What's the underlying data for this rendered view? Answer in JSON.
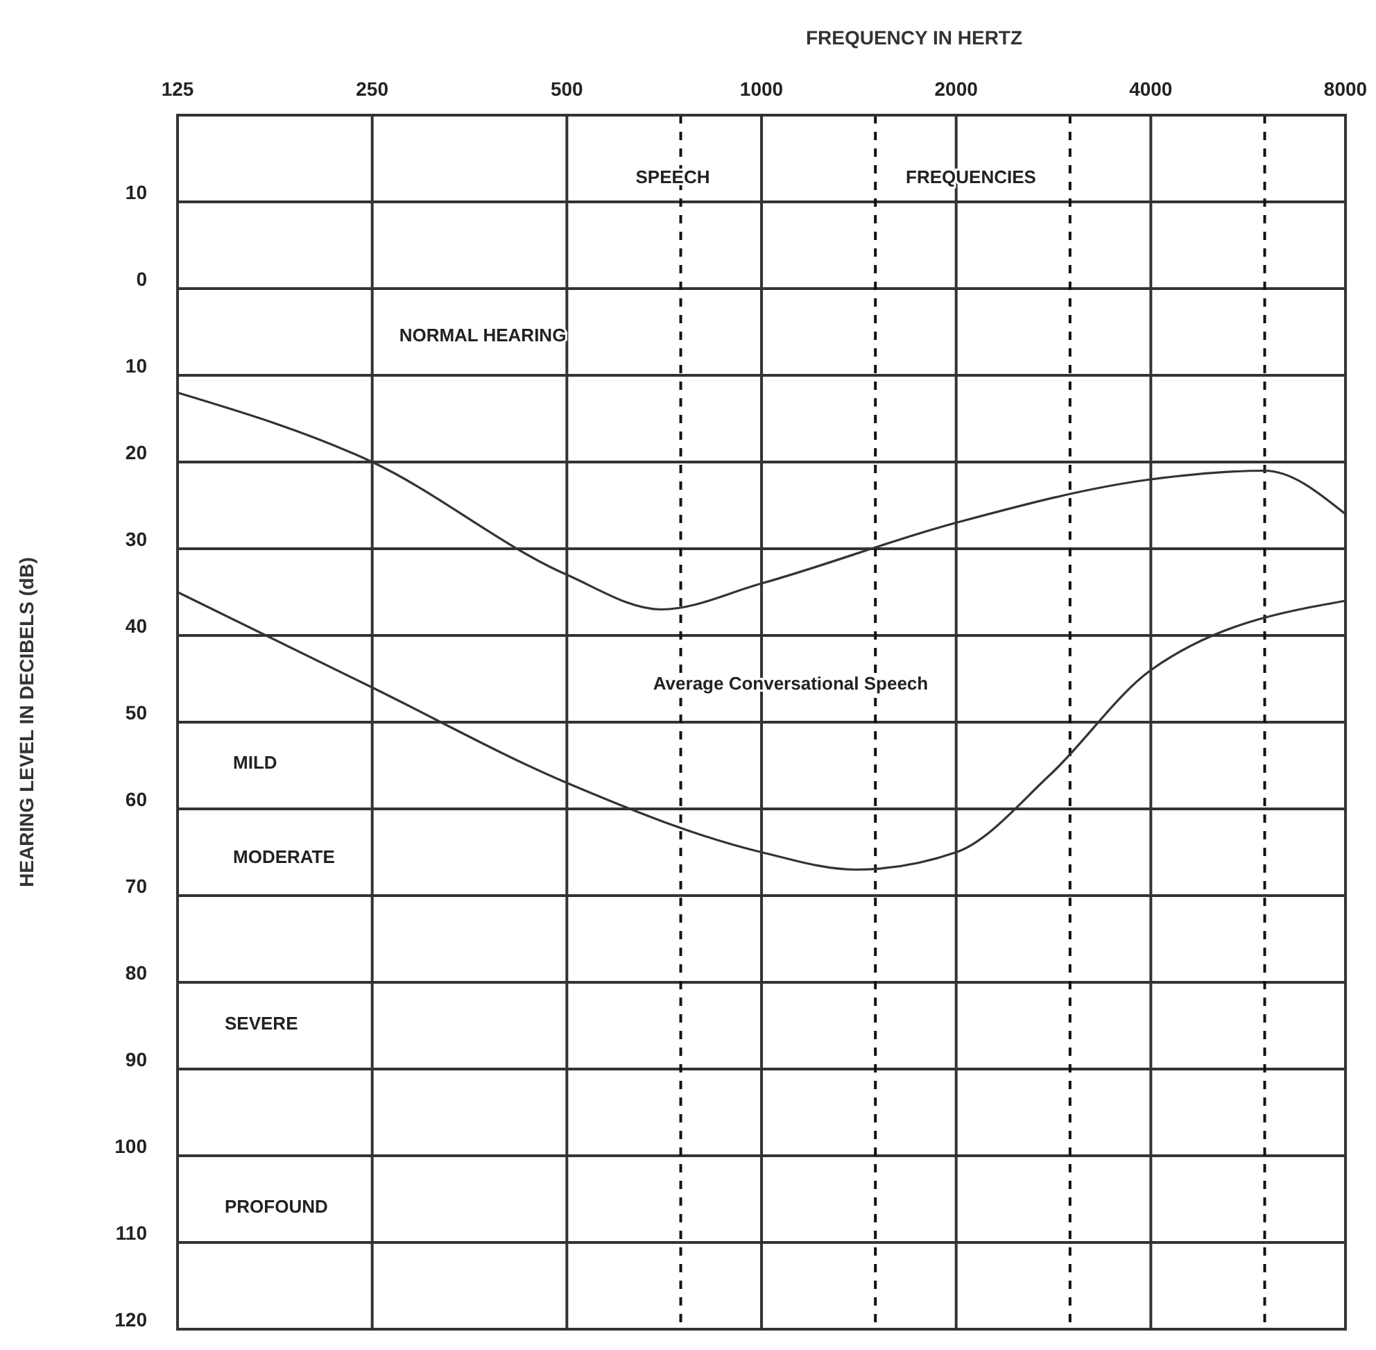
{
  "chart_data": {
    "type": "line",
    "xlabel": "FREQUENCY IN HERTZ",
    "ylabel": "HEARING LEVEL IN DECIBELS (dB)",
    "log": "x",
    "grid": true,
    "line_style": "solid",
    "xlim": [
      125,
      8000
    ],
    "xticks": [
      125,
      250,
      500,
      1000,
      2000,
      4000,
      8000
    ],
    "ylim": [
      120,
      -20
    ],
    "yticks": [
      {
        "value": -10,
        "label": "10"
      },
      0,
      10,
      20,
      30,
      40,
      50,
      60,
      70,
      80,
      90,
      100,
      110,
      120
    ],
    "series": [
      {
        "color": "#333333",
        "x": [
          125,
          250,
          500,
          700,
          1000,
          2000,
          4000,
          6000,
          8000
        ],
        "values": [
          12,
          20,
          33,
          37,
          34,
          27,
          22,
          21,
          26
        ]
      },
      {
        "color": "#333333",
        "x": [
          125,
          250,
          500,
          1000,
          1400,
          2000,
          2800,
          4000,
          8000
        ],
        "values": [
          35,
          46,
          57,
          65,
          67,
          65,
          56,
          44,
          36
        ]
      }
    ],
    "ref_lines": [
      {
        "axis": "x",
        "value": 750,
        "line_style": "dashed"
      },
      {
        "axis": "x",
        "value": 1500,
        "line_style": "dashed"
      },
      {
        "axis": "x",
        "value": 3000,
        "line_style": "dashed"
      },
      {
        "axis": "x",
        "value": 6000,
        "line_style": "dashed"
      }
    ],
    "annotations": [
      "SPEECH",
      "FREQUENCIES",
      "NORMAL HEARING",
      "Average Conversational Speech",
      "MILD",
      "MODERATE",
      "SEVERE",
      "PROFOUND"
    ]
  }
}
